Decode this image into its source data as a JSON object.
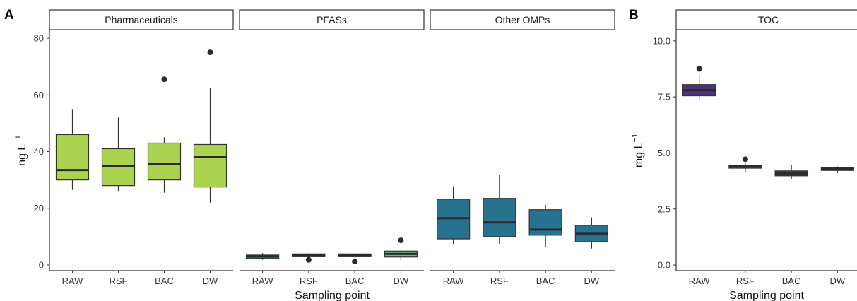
{
  "figure": {
    "panel_a_tag": "A",
    "panel_b_tag": "B",
    "panel_a_ylabel_main": "ng L",
    "panel_a_ylabel_sup": "−1",
    "panel_b_ylabel_main": "mg L",
    "panel_b_ylabel_sup": "−1",
    "xlabel": "Sampling point"
  },
  "colors": {
    "Pharmaceuticals": "#acd252",
    "PFASs_dw": "#5fbf7e",
    "PFASs": "#2f8a6c",
    "Other OMPs": "#27728e",
    "TOC": "#4b327a",
    "median": "#2b2b2b",
    "outlier": "#2b2b2b"
  },
  "chart_data": [
    {
      "type": "box",
      "facet": "Pharmaceuticals",
      "categories": [
        "RAW",
        "RSF",
        "BAC",
        "DW"
      ],
      "ylim": [
        -2,
        83
      ],
      "yticks": [
        0,
        20,
        40,
        60,
        80
      ],
      "boxes": [
        {
          "x": "RAW",
          "whisker_low": 26.5,
          "q1": 30,
          "median": 33.5,
          "q3": 46,
          "whisker_high": 55,
          "outliers": []
        },
        {
          "x": "RSF",
          "whisker_low": 26,
          "q1": 28,
          "median": 35,
          "q3": 41,
          "whisker_high": 52,
          "outliers": []
        },
        {
          "x": "BAC",
          "whisker_low": 25.5,
          "q1": 30,
          "median": 35.5,
          "q3": 43,
          "whisker_high": 45,
          "outliers": [
            65.5
          ]
        },
        {
          "x": "DW",
          "whisker_low": 22,
          "q1": 27.5,
          "median": 38,
          "q3": 42.5,
          "whisker_high": 62.5,
          "outliers": [
            75
          ]
        }
      ]
    },
    {
      "type": "box",
      "facet": "PFASs",
      "categories": [
        "RAW",
        "RSF",
        "BAC",
        "DW"
      ],
      "ylim": [
        -2,
        83
      ],
      "boxes": [
        {
          "x": "RAW",
          "whisker_low": 1.8,
          "q1": 2.3,
          "median": 3.0,
          "q3": 3.5,
          "whisker_high": 4.2,
          "outliers": []
        },
        {
          "x": "RSF",
          "whisker_low": 2.6,
          "q1": 2.9,
          "median": 3.4,
          "q3": 3.9,
          "whisker_high": 4.1,
          "outliers": [
            1.8
          ]
        },
        {
          "x": "BAC",
          "whisker_low": 2.6,
          "q1": 2.9,
          "median": 3.4,
          "q3": 3.9,
          "whisker_high": 4.1,
          "outliers": [
            1.2
          ]
        },
        {
          "x": "DW",
          "whisker_low": 1.8,
          "q1": 2.8,
          "median": 3.9,
          "q3": 4.9,
          "whisker_high": 5.2,
          "outliers": [
            8.7
          ]
        }
      ]
    },
    {
      "type": "box",
      "facet": "Other OMPs",
      "categories": [
        "RAW",
        "RSF",
        "BAC",
        "DW"
      ],
      "ylim": [
        -2,
        83
      ],
      "boxes": [
        {
          "x": "RAW",
          "whisker_low": 7.2,
          "q1": 9.2,
          "median": 16.5,
          "q3": 23.2,
          "whisker_high": 27.8,
          "outliers": []
        },
        {
          "x": "RSF",
          "whisker_low": 7.5,
          "q1": 10,
          "median": 15,
          "q3": 23.5,
          "whisker_high": 31.8,
          "outliers": []
        },
        {
          "x": "BAC",
          "whisker_low": 6.3,
          "q1": 10.5,
          "median": 12.5,
          "q3": 19.5,
          "whisker_high": 21.2,
          "outliers": []
        },
        {
          "x": "DW",
          "whisker_low": 5.8,
          "q1": 8.2,
          "median": 11,
          "q3": 14,
          "whisker_high": 16.8,
          "outliers": []
        }
      ]
    },
    {
      "type": "box",
      "facet": "TOC",
      "categories": [
        "RAW",
        "RSF",
        "BAC",
        "DW"
      ],
      "ylim": [
        -0.25,
        10.5
      ],
      "yticks": [
        "0.0",
        "2.5",
        "5.0",
        "7.5",
        "10.0"
      ],
      "boxes": [
        {
          "x": "RAW",
          "whisker_low": 7.35,
          "q1": 7.55,
          "median": 7.8,
          "q3": 8.05,
          "whisker_high": 8.5,
          "outliers": [
            8.75
          ]
        },
        {
          "x": "RSF",
          "whisker_low": 4.15,
          "q1": 4.32,
          "median": 4.4,
          "q3": 4.45,
          "whisker_high": 4.55,
          "outliers": [
            4.72
          ]
        },
        {
          "x": "BAC",
          "whisker_low": 3.82,
          "q1": 3.98,
          "median": 4.08,
          "q3": 4.2,
          "whisker_high": 4.45,
          "outliers": []
        },
        {
          "x": "DW",
          "whisker_low": 4.1,
          "q1": 4.22,
          "median": 4.3,
          "q3": 4.36,
          "whisker_high": 4.4,
          "outliers": []
        }
      ]
    }
  ]
}
